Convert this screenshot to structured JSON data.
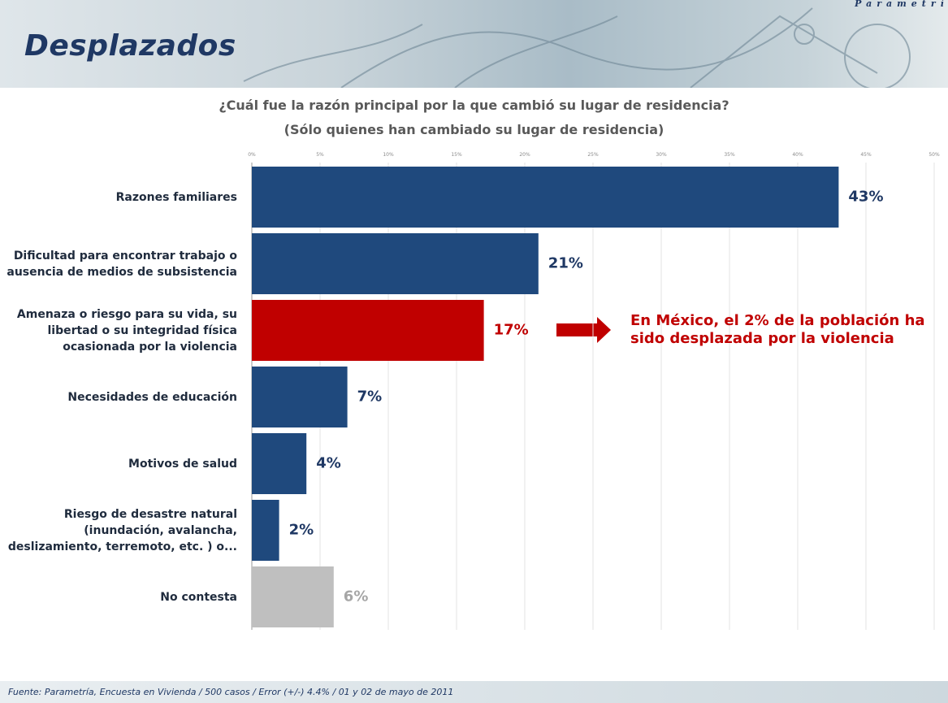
{
  "header": {
    "title": "Desplazados",
    "logo": "Parametría"
  },
  "chart_data": {
    "type": "bar",
    "orientation": "horizontal",
    "title": "¿Cuál fue la razón principal por la que  cambió su lugar de residencia?",
    "subtitle": "(Sólo quienes han cambiado su lugar de residencia)",
    "categories": [
      "Razones familiares",
      "Dificultad para encontrar trabajo o\nausencia de medios de subsistencia",
      "Amenaza o riesgo para su vida, su\nlibertad o su integridad física\nocasionada por la violencia",
      "Necesidades de educación",
      "Motivos de salud",
      "Riesgo de desastre natural\n(inundación, avalancha,\ndeslizamiento, terremoto, etc. ) o...",
      "No contesta"
    ],
    "values": [
      43,
      21,
      17,
      7,
      4,
      2,
      6
    ],
    "value_labels": [
      "43%",
      "21%",
      "17%",
      "7%",
      "4%",
      "2%",
      "6%"
    ],
    "colors": [
      "#1f497d",
      "#1f497d",
      "#c00000",
      "#1f497d",
      "#1f497d",
      "#1f497d",
      "#bfbfbf"
    ],
    "label_colors": [
      "#1f3864",
      "#1f3864",
      "#c00000",
      "#1f3864",
      "#1f3864",
      "#1f3864",
      "#a6a6a6"
    ],
    "xlim": [
      0,
      50
    ],
    "xticks": [
      {
        "value": 0,
        "label": "0%"
      },
      {
        "value": 5,
        "label": "5%"
      },
      {
        "value": 10,
        "label": "10%"
      },
      {
        "value": 15,
        "label": "15%"
      },
      {
        "value": 20,
        "label": "20%"
      },
      {
        "value": 25,
        "label": "25%"
      },
      {
        "value": 30,
        "label": "30%"
      },
      {
        "value": 35,
        "label": "35%"
      },
      {
        "value": 40,
        "label": "40%"
      },
      {
        "value": 45,
        "label": "45%"
      },
      {
        "value": 50,
        "label": "50%"
      }
    ],
    "grid": true,
    "annotation": "En México, el 2% de la población ha\nsido desplazada por la violencia"
  },
  "footer": {
    "source": "Fuente: Parametría, Encuesta en Vivienda / 500 casos / Error (+/-) 4.4% / 01 y 02 de mayo de 2011"
  }
}
